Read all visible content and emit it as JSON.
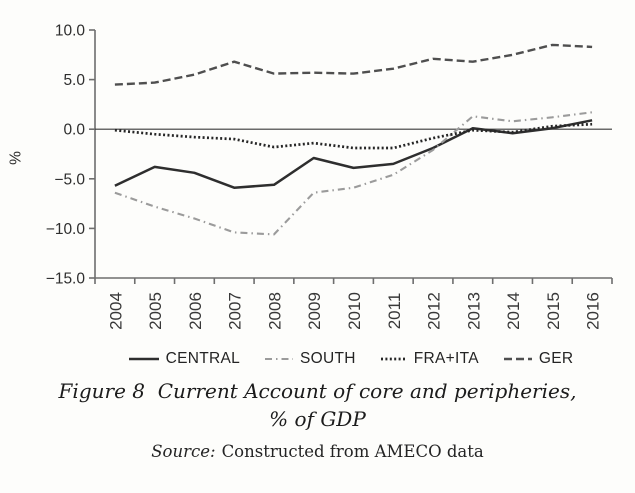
{
  "figure": {
    "caption_line1": "Figure 8  Current Account of core and peripheries,",
    "caption_line2": "% of GDP",
    "source_prefix": "Source:",
    "source_text": "Constructed from AMECO data"
  },
  "chart_data": {
    "type": "line",
    "title": "Figure 8 Current Account of core and peripheries, % of GDP",
    "xlabel": "",
    "ylabel": "%",
    "categories": [
      2004,
      2005,
      2006,
      2007,
      2008,
      2009,
      2010,
      2011,
      2012,
      2013,
      2014,
      2015,
      2016
    ],
    "ylim": [
      -15,
      10
    ],
    "yticks": [
      10,
      5,
      0,
      -5,
      -10,
      -15
    ],
    "ytick_labels": [
      "10.0",
      "5.0",
      "0.0",
      "−5.0",
      "−10.0",
      "−15.0"
    ],
    "zero_line": true,
    "grid": false,
    "legend_position": "bottom",
    "series": [
      {
        "name": "CENTRAL",
        "style": "solid",
        "color": "#2e2e2e",
        "values": [
          -5.7,
          -3.8,
          -4.4,
          -5.9,
          -5.6,
          -2.9,
          -3.9,
          -3.5,
          -1.9,
          0.1,
          -0.4,
          0.1,
          0.9
        ]
      },
      {
        "name": "SOUTH",
        "style": "dashdot",
        "color": "#9b9b9b",
        "values": [
          -6.4,
          -7.8,
          -9.0,
          -10.4,
          -10.6,
          -6.4,
          -5.9,
          -4.6,
          -2.1,
          1.3,
          0.8,
          1.2,
          1.7
        ]
      },
      {
        "name": "FRA+ITA",
        "style": "dotted",
        "color": "#262626",
        "values": [
          -0.1,
          -0.5,
          -0.8,
          -1.0,
          -1.8,
          -1.4,
          -1.9,
          -1.9,
          -0.9,
          -0.1,
          -0.3,
          0.3,
          0.5
        ]
      },
      {
        "name": "GER",
        "style": "dashed",
        "color": "#4f4f4f",
        "values": [
          4.5,
          4.7,
          5.5,
          6.8,
          5.6,
          5.7,
          5.6,
          6.1,
          7.1,
          6.8,
          7.5,
          8.5,
          8.3
        ]
      }
    ]
  }
}
